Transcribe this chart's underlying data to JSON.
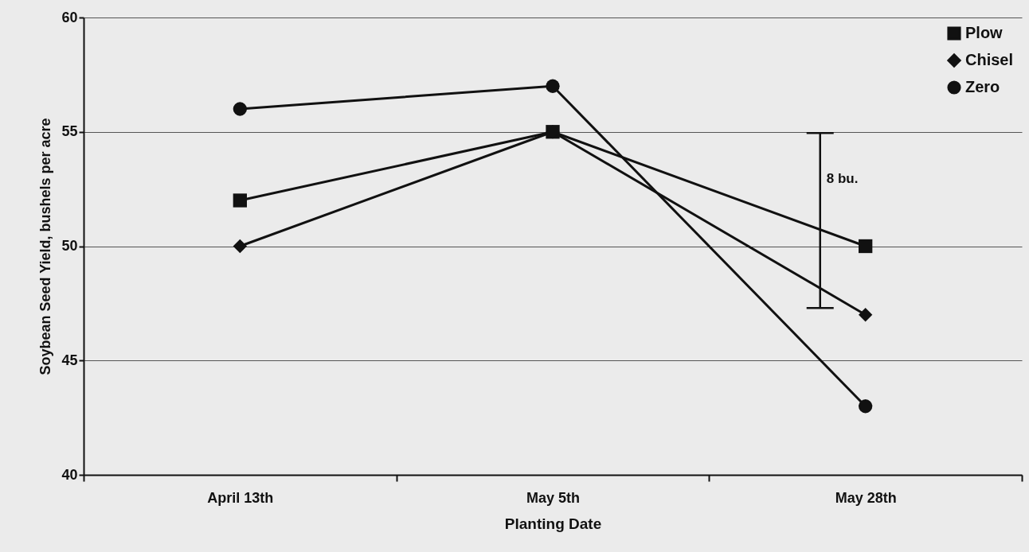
{
  "chart_data": {
    "type": "line",
    "xlabel": "Planting Date",
    "ylabel": "Soybean Seed Yield, bushels per acre",
    "categories": [
      "April 13th",
      "May 5th",
      "May 28th"
    ],
    "series": [
      {
        "name": "Plow",
        "color": "#111111",
        "marker": "square",
        "values": [
          52,
          55,
          50
        ]
      },
      {
        "name": "Chisel",
        "color": "#111111",
        "marker": "diamond",
        "values": [
          50,
          55,
          47
        ]
      },
      {
        "name": "Zero",
        "color": "#111111",
        "marker": "circle",
        "values": [
          56,
          57,
          43
        ]
      }
    ],
    "ylim": [
      40,
      60
    ],
    "yticks": [
      40,
      45,
      50,
      55,
      60
    ],
    "grid": "y",
    "legend": "top right",
    "annotations": [
      "8 bu."
    ]
  }
}
